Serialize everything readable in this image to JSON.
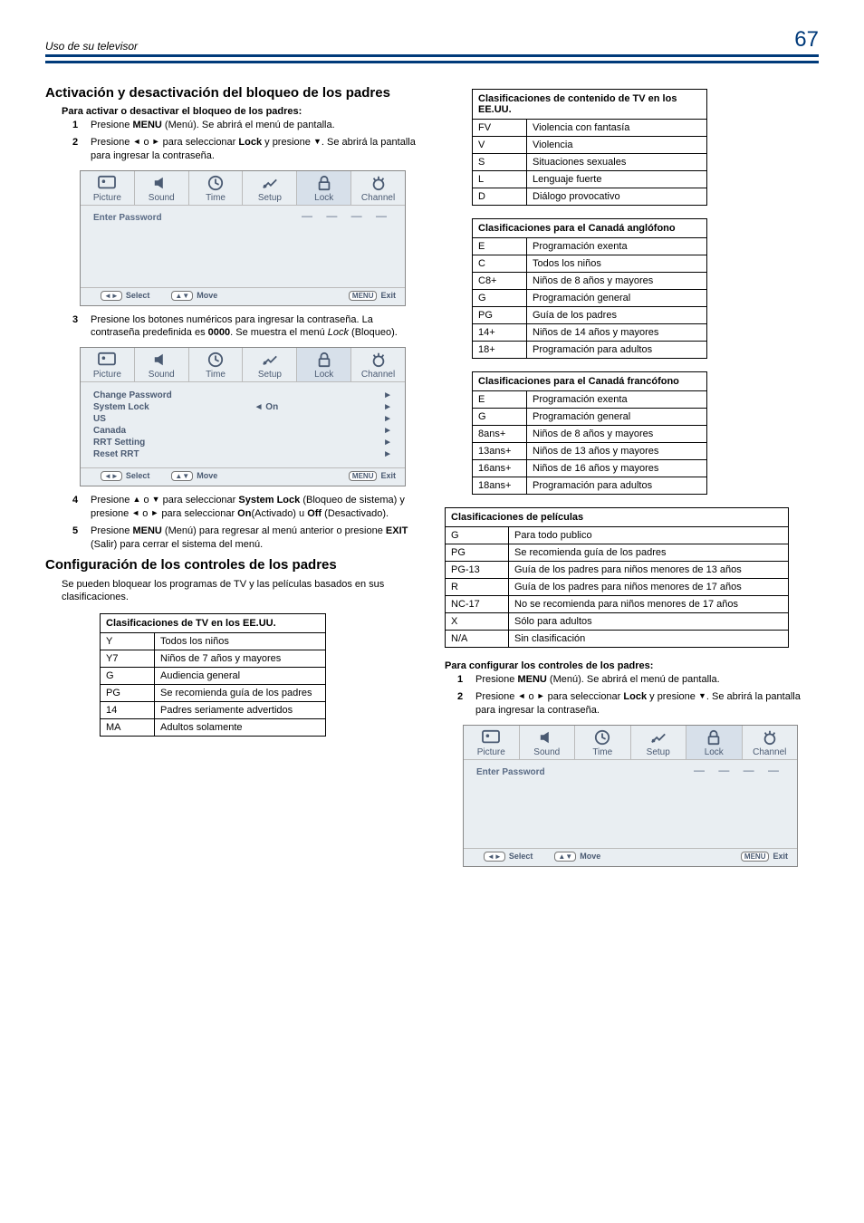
{
  "header": {
    "title_left": "Uso de su televisor",
    "page_number": "67"
  },
  "left": {
    "section1_title": "Activación y desactivación del bloqueo de los padres",
    "activate_heading": "Para activar o desactivar el bloqueo de los padres:",
    "steps": {
      "s1": "Presione <b>MENU</b> (Menú). Se abrirá el menú de pantalla.",
      "s2": "Presione <span class='arrow'>◄</span> o <span class='arrow'>►</span> para seleccionar <b>Lock</b> y presione <span class='arrow'>▼</span>. Se abrirá la pantalla para ingresar la contraseña.",
      "s3": "Presione los botones numéricos para ingresar la contraseña. La contraseña predefinida es <b>0000</b>. Se muestra el menú <i class='m'>Lock</i> (Bloqueo).",
      "s4": "Presione <span class='arrow'>▲</span> o <span class='arrow'>▼</span> para seleccionar <b>System Lock</b> (Bloqueo de sistema) y presione <span class='arrow'>◄</span> o <span class='arrow'>►</span> para seleccionar <b>On</b>(Activado) u <b>Off</b> (Desactivado).",
      "s5": "Presione <b>MENU</b> (Menú) para regresar al menú anterior o presione <b>EXIT</b> (Salir) para cerrar el sistema del menú."
    },
    "osd_tabs": [
      "Picture",
      "Sound",
      "Time",
      "Setup",
      "Lock",
      "Channel"
    ],
    "osd1_title": "Enter Password",
    "osd2_items": [
      {
        "l": "Change Password",
        "m": "",
        "r": "►"
      },
      {
        "l": "System Lock",
        "m": "◄         On",
        "r": "►"
      },
      {
        "l": "US",
        "m": "",
        "r": "►"
      },
      {
        "l": "Canada",
        "m": "",
        "r": "►"
      },
      {
        "l": "RRT Setting",
        "m": "",
        "r": "►"
      },
      {
        "l": "Reset RRT",
        "m": "",
        "r": "►"
      }
    ],
    "osd_footer": {
      "select": "Select",
      "move": "Move",
      "menu": "MENU",
      "exit": "Exit"
    },
    "section2_title": "Configuración de los controles de los padres",
    "section2_para": "Se pueden bloquear los programas de TV y las películas basados en sus clasificaciones.",
    "tv_us": {
      "caption": "Clasificaciones de TV en los EE.UU.",
      "rows": [
        [
          "Y",
          "Todos los niños"
        ],
        [
          "Y7",
          "Niños de 7 años y mayores"
        ],
        [
          "G",
          "Audiencia general"
        ],
        [
          "PG",
          "Se recomienda guía de los padres"
        ],
        [
          "14",
          "Padres seriamente advertidos"
        ],
        [
          "MA",
          "Adultos solamente"
        ]
      ]
    }
  },
  "right": {
    "tv_us_content": {
      "caption": "Clasificaciones de contenido de TV en los EE.UU.",
      "rows": [
        [
          "FV",
          "Violencia con fantasía"
        ],
        [
          "V",
          "Violencia"
        ],
        [
          "S",
          "Situaciones sexuales"
        ],
        [
          "L",
          "Lenguaje fuerte"
        ],
        [
          "D",
          "Diálogo provocativo"
        ]
      ]
    },
    "canada_en": {
      "caption": "Clasificaciones para el Canadá anglófono",
      "rows": [
        [
          "E",
          "Programación exenta"
        ],
        [
          "C",
          "Todos los niños"
        ],
        [
          "C8+",
          "Niños de 8 años y mayores"
        ],
        [
          "G",
          "Programación general"
        ],
        [
          "PG",
          "Guía de los padres"
        ],
        [
          "14+",
          "Niños de 14 años y mayores"
        ],
        [
          "18+",
          "Programación para adultos"
        ]
      ]
    },
    "canada_fr": {
      "caption": "Clasificaciones para el Canadá francófono",
      "rows": [
        [
          "E",
          "Programación exenta"
        ],
        [
          "G",
          "Programación general"
        ],
        [
          "8ans+",
          "Niños de 8 años y mayores"
        ],
        [
          "13ans+",
          "Niños de 13 años y mayores"
        ],
        [
          "16ans+",
          "Niños de 16 años y mayores"
        ],
        [
          "18ans+",
          "Programación para adultos"
        ]
      ]
    },
    "movies": {
      "caption": "Clasificaciones de películas",
      "rows": [
        [
          "G",
          "Para todo publico"
        ],
        [
          "PG",
          "Se recomienda guía de los padres"
        ],
        [
          "PG-13",
          "Guía de los padres para niños menores de 13 años"
        ],
        [
          "R",
          "Guía de los padres para niños menores de 17 años"
        ],
        [
          "NC-17",
          "No se recomienda para niños menores de 17 años"
        ],
        [
          "X",
          "Sólo para adultos"
        ],
        [
          "N/A",
          "Sin clasificación"
        ]
      ]
    },
    "config_heading": "Para configurar los controles de los padres:",
    "steps": {
      "s1": "Presione <b>MENU</b> (Menú). Se abrirá el menú de pantalla.",
      "s2": "Presione <span class='arrow'>◄</span> o <span class='arrow'>►</span> para seleccionar <b>Lock</b> y presione <span class='arrow'>▼</span>. Se abrirá la pantalla para ingresar la contraseña."
    }
  }
}
